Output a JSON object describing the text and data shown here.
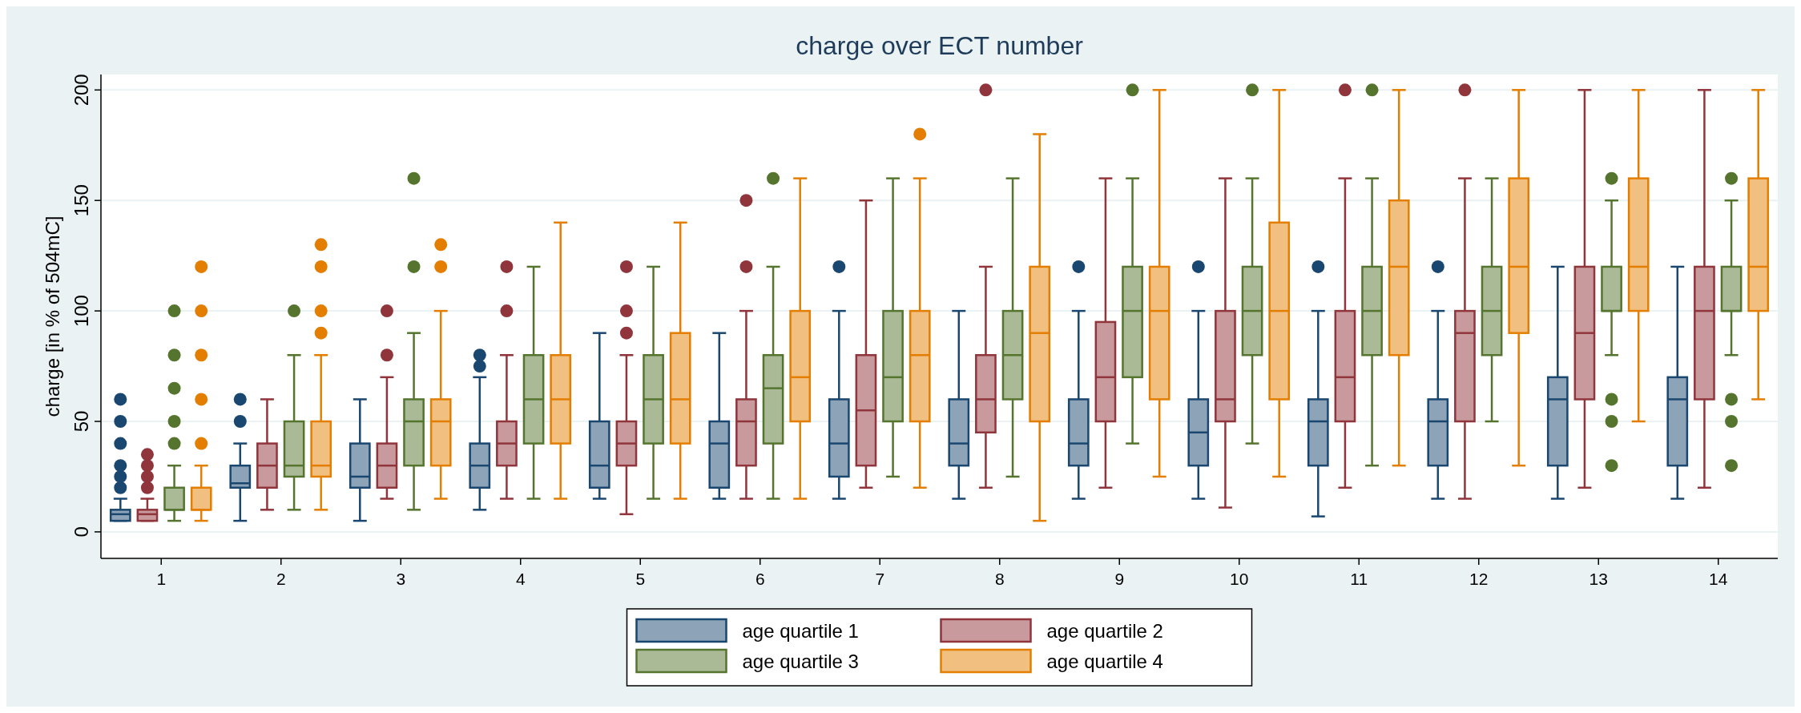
{
  "chart_data": {
    "type": "box",
    "title": "charge over ECT number",
    "ylabel": "charge [in % of 504mC]",
    "categories": [
      "1",
      "2",
      "3",
      "4",
      "5",
      "6",
      "7",
      "8",
      "9",
      "10",
      "11",
      "12",
      "13",
      "14"
    ],
    "ylim": [
      -12,
      207
    ],
    "yticks": [
      0,
      50,
      100,
      150,
      200
    ],
    "grid": "y",
    "legend": "bottom",
    "marker": "circle",
    "series": [
      {
        "name": "age quartile 1",
        "color": "#1a476f",
        "boxes": [
          {
            "low": 5,
            "q1": 5,
            "median": 8,
            "q3": 10,
            "high": 15,
            "outliers": [
              20,
              25,
              30,
              40,
              50,
              60
            ]
          },
          {
            "low": 5,
            "q1": 20,
            "median": 22,
            "q3": 30,
            "high": 40,
            "outliers": [
              50,
              60
            ]
          },
          {
            "low": 5,
            "q1": 20,
            "median": 25,
            "q3": 40,
            "high": 60
          },
          {
            "low": 10,
            "q1": 20,
            "median": 30,
            "q3": 40,
            "high": 70,
            "outliers": [
              75,
              80
            ]
          },
          {
            "low": 15,
            "q1": 20,
            "median": 30,
            "q3": 50,
            "high": 90
          },
          {
            "low": 15,
            "q1": 20,
            "median": 40,
            "q3": 50,
            "high": 90
          },
          {
            "low": 15,
            "q1": 25,
            "median": 40,
            "q3": 60,
            "high": 100,
            "outliers": [
              120
            ]
          },
          {
            "low": 15,
            "q1": 30,
            "median": 40,
            "q3": 60,
            "high": 100
          },
          {
            "low": 15,
            "q1": 30,
            "median": 40,
            "q3": 60,
            "high": 100,
            "outliers": [
              120
            ]
          },
          {
            "low": 15,
            "q1": 30,
            "median": 45,
            "q3": 60,
            "high": 100,
            "outliers": [
              120
            ]
          },
          {
            "low": 7,
            "q1": 30,
            "median": 50,
            "q3": 60,
            "high": 100,
            "outliers": [
              120
            ]
          },
          {
            "low": 15,
            "q1": 30,
            "median": 50,
            "q3": 60,
            "high": 100,
            "outliers": [
              120
            ]
          },
          {
            "low": 15,
            "q1": 30,
            "median": 60,
            "q3": 70,
            "high": 120
          },
          {
            "low": 15,
            "q1": 30,
            "median": 60,
            "q3": 70,
            "high": 120
          }
        ]
      },
      {
        "name": "age quartile 2",
        "color": "#90353b",
        "boxes": [
          {
            "low": 5,
            "q1": 5,
            "median": 8,
            "q3": 10,
            "high": 15,
            "outliers": [
              20,
              25,
              30,
              35
            ]
          },
          {
            "low": 10,
            "q1": 20,
            "median": 30,
            "q3": 40,
            "high": 60
          },
          {
            "low": 15,
            "q1": 20,
            "median": 30,
            "q3": 40,
            "high": 70,
            "outliers": [
              80,
              100
            ]
          },
          {
            "low": 15,
            "q1": 30,
            "median": 40,
            "q3": 50,
            "high": 80,
            "outliers": [
              100,
              120
            ]
          },
          {
            "low": 8,
            "q1": 30,
            "median": 40,
            "q3": 50,
            "high": 80,
            "outliers": [
              90,
              100,
              120
            ]
          },
          {
            "low": 15,
            "q1": 30,
            "median": 50,
            "q3": 60,
            "high": 100,
            "outliers": [
              120,
              150
            ]
          },
          {
            "low": 20,
            "q1": 30,
            "median": 55,
            "q3": 80,
            "high": 150
          },
          {
            "low": 20,
            "q1": 45,
            "median": 60,
            "q3": 80,
            "high": 120,
            "outliers": [
              200
            ]
          },
          {
            "low": 20,
            "q1": 50,
            "median": 70,
            "q3": 95,
            "high": 160
          },
          {
            "low": 11,
            "q1": 50,
            "median": 60,
            "q3": 100,
            "high": 160
          },
          {
            "low": 20,
            "q1": 50,
            "median": 70,
            "q3": 100,
            "high": 160,
            "outliers": [
              200
            ]
          },
          {
            "low": 15,
            "q1": 50,
            "median": 90,
            "q3": 100,
            "high": 160,
            "outliers": [
              200
            ]
          },
          {
            "low": 20,
            "q1": 60,
            "median": 90,
            "q3": 120,
            "high": 200
          },
          {
            "low": 20,
            "q1": 60,
            "median": 100,
            "q3": 120,
            "high": 200
          }
        ]
      },
      {
        "name": "age quartile 3",
        "color": "#55752f",
        "boxes": [
          {
            "low": 5,
            "q1": 10,
            "median": 10,
            "q3": 20,
            "high": 30,
            "outliers": [
              40,
              50,
              65,
              80,
              100
            ]
          },
          {
            "low": 10,
            "q1": 25,
            "median": 30,
            "q3": 50,
            "high": 80,
            "outliers": [
              100
            ]
          },
          {
            "low": 10,
            "q1": 30,
            "median": 50,
            "q3": 60,
            "high": 90,
            "outliers": [
              120,
              160
            ]
          },
          {
            "low": 15,
            "q1": 40,
            "median": 60,
            "q3": 80,
            "high": 120
          },
          {
            "low": 15,
            "q1": 40,
            "median": 60,
            "q3": 80,
            "high": 120
          },
          {
            "low": 15,
            "q1": 40,
            "median": 65,
            "q3": 80,
            "high": 120,
            "outliers": [
              160
            ]
          },
          {
            "low": 25,
            "q1": 50,
            "median": 70,
            "q3": 100,
            "high": 160
          },
          {
            "low": 25,
            "q1": 60,
            "median": 80,
            "q3": 100,
            "high": 160
          },
          {
            "low": 40,
            "q1": 70,
            "median": 100,
            "q3": 120,
            "high": 160,
            "outliers": [
              200
            ]
          },
          {
            "low": 40,
            "q1": 80,
            "median": 100,
            "q3": 120,
            "high": 160,
            "outliers": [
              200
            ]
          },
          {
            "low": 30,
            "q1": 80,
            "median": 100,
            "q3": 120,
            "high": 160,
            "outliers": [
              200
            ]
          },
          {
            "low": 50,
            "q1": 80,
            "median": 100,
            "q3": 120,
            "high": 160
          },
          {
            "low": 80,
            "q1": 100,
            "median": 100,
            "q3": 120,
            "high": 150,
            "outliers": [
              30,
              50,
              60,
              160
            ]
          },
          {
            "low": 80,
            "q1": 100,
            "median": 100,
            "q3": 120,
            "high": 150,
            "outliers": [
              30,
              50,
              60,
              160
            ]
          }
        ]
      },
      {
        "name": "age quartile 4",
        "color": "#e37e00",
        "boxes": [
          {
            "low": 5,
            "q1": 10,
            "median": 10,
            "q3": 20,
            "high": 30,
            "outliers": [
              40,
              60,
              80,
              100,
              120
            ]
          },
          {
            "low": 10,
            "q1": 25,
            "median": 30,
            "q3": 50,
            "high": 80,
            "outliers": [
              90,
              100,
              120,
              130
            ]
          },
          {
            "low": 15,
            "q1": 30,
            "median": 50,
            "q3": 60,
            "high": 100,
            "outliers": [
              120,
              130
            ]
          },
          {
            "low": 15,
            "q1": 40,
            "median": 60,
            "q3": 80,
            "high": 140
          },
          {
            "low": 15,
            "q1": 40,
            "median": 60,
            "q3": 90,
            "high": 140
          },
          {
            "low": 15,
            "q1": 50,
            "median": 70,
            "q3": 100,
            "high": 160
          },
          {
            "low": 20,
            "q1": 50,
            "median": 80,
            "q3": 100,
            "high": 160,
            "outliers": [
              180
            ]
          },
          {
            "low": 5,
            "q1": 50,
            "median": 90,
            "q3": 120,
            "high": 180
          },
          {
            "low": 25,
            "q1": 60,
            "median": 100,
            "q3": 120,
            "high": 200
          },
          {
            "low": 25,
            "q1": 60,
            "median": 100,
            "q3": 140,
            "high": 200
          },
          {
            "low": 30,
            "q1": 80,
            "median": 120,
            "q3": 150,
            "high": 200
          },
          {
            "low": 30,
            "q1": 90,
            "median": 120,
            "q3": 160,
            "high": 200
          },
          {
            "low": 50,
            "q1": 100,
            "median": 120,
            "q3": 160,
            "high": 200
          },
          {
            "low": 60,
            "q1": 100,
            "median": 120,
            "q3": 160,
            "high": 200
          }
        ]
      }
    ]
  }
}
